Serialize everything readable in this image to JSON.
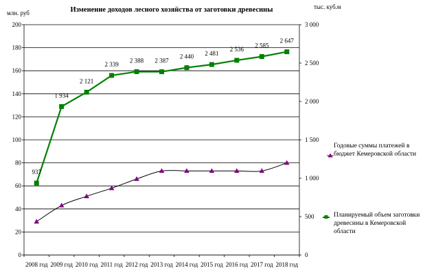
{
  "chart_data": {
    "type": "line",
    "title": "Изменение доходов  лесного хозяйства от заготовки древесины",
    "left_axis_unit": "млн. руб",
    "right_axis_unit": "тыс. куб.м",
    "categories": [
      "2008 год",
      "2009 год",
      "2010 год",
      "2011 год",
      "2012 год",
      "2013 год",
      "2014 год",
      "2015 год",
      "2016 год",
      "2017 год",
      "2018 год"
    ],
    "left_ylim": [
      0,
      200
    ],
    "left_ticks": [
      "0",
      "20",
      "40",
      "60",
      "80",
      "100",
      "120",
      "140",
      "160",
      "180",
      "200"
    ],
    "right_ylim": [
      0,
      3000
    ],
    "right_ticks": [
      "0",
      "500",
      "1 000",
      "1 500",
      "2 000",
      "2 500",
      "3 000"
    ],
    "grid": "horizontal",
    "legend_position": "right",
    "series": [
      {
        "name": "Годовые суммы платежей в бюджет Кемеровской области",
        "axis": "left",
        "color": "#800080",
        "marker": "triangle",
        "values": [
          29,
          43,
          51,
          58,
          66,
          73,
          73,
          73,
          73,
          73,
          80
        ]
      },
      {
        "name": "Планируемый объем заготовки древесины  в Кемеровской области",
        "axis": "right",
        "color": "#008000",
        "marker": "square",
        "values": [
          937,
          1934,
          2121,
          2339,
          2388,
          2387,
          2440,
          2481,
          2536,
          2585,
          2647
        ],
        "data_labels": [
          "937",
          "1 934",
          "2 121",
          "2 339",
          "2 388",
          "2 387",
          "2 440",
          "2 481",
          "2 536",
          "2 585",
          "2 647"
        ]
      }
    ]
  }
}
